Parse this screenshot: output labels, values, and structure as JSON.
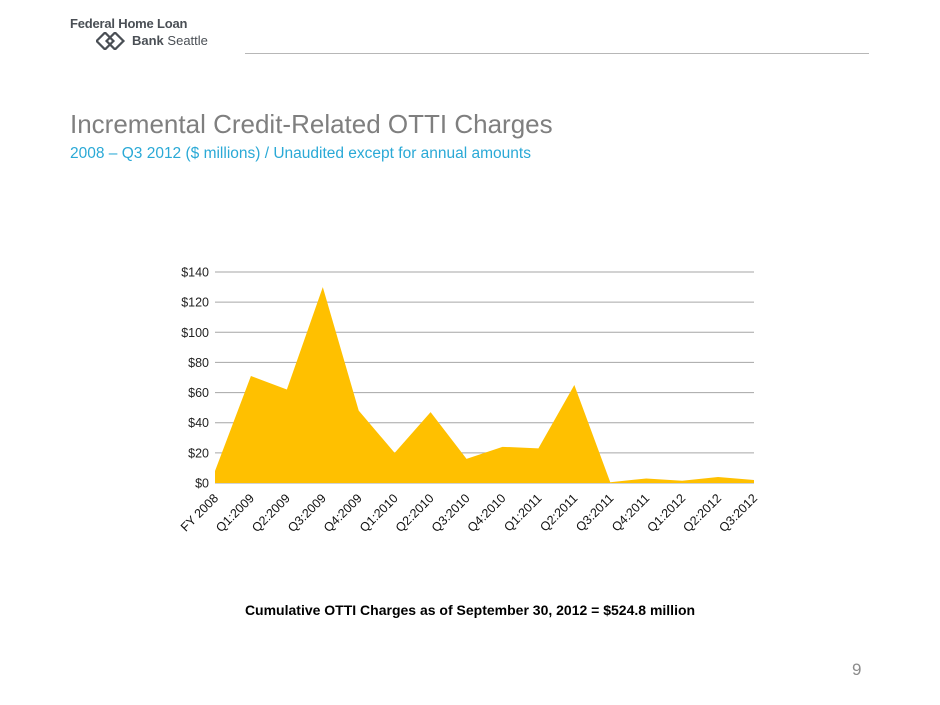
{
  "header": {
    "logo_line1": "Federal Home Loan",
    "logo_bank": "Bank",
    "logo_city": "Seattle"
  },
  "slide": {
    "title": "Incremental Credit-Related OTTI Charges",
    "subtitle": "2008 – Q3 2012 ($ millions) / Unaudited except for annual amounts",
    "caption": "Cumulative OTTI Charges as of September 30, 2012 = $524.8 million",
    "page_number": "9"
  },
  "colors": {
    "area_fill": "#FFC000",
    "title": "#7F7F7F",
    "subtitle": "#2AA9D6",
    "gridline": "#A6A6A6"
  },
  "chart_data": {
    "type": "area",
    "categories": [
      "FY 2008",
      "Q1:2009",
      "Q2:2009",
      "Q3:2009",
      "Q4:2009",
      "Q1:2010",
      "Q2:2010",
      "Q3:2010",
      "Q4:2010",
      "Q1:2011",
      "Q2:2011",
      "Q3:2011",
      "Q4:2011",
      "Q1:2012",
      "Q2:2012",
      "Q3:2012"
    ],
    "values": [
      8,
      71,
      62,
      130,
      48,
      20,
      47,
      16,
      24,
      23,
      65,
      0.5,
      3,
      1.5,
      4,
      2
    ],
    "ylim": [
      0,
      140
    ],
    "yticks": [
      0,
      20,
      40,
      60,
      80,
      100,
      120,
      140
    ],
    "ytick_labels": [
      "$0",
      "$20",
      "$40",
      "$60",
      "$80",
      "$100",
      "$120",
      "$140"
    ],
    "grid": true,
    "legend": "none"
  }
}
